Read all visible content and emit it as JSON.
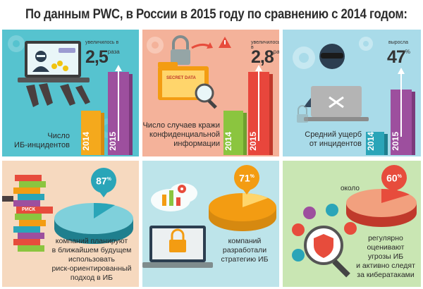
{
  "title": "По данным PWC, в России в 2015 году по сравнению с 2014 годом:",
  "colors": {
    "orange": "#f39c12",
    "purple": "#9b4d9a",
    "teal": "#2aa5b8",
    "salmon": "#f2a07e"
  },
  "panel1": {
    "caption_line1": "Число",
    "caption_line2": "ИБ-инцидентов",
    "note": "увеличилось в",
    "value": "2,5",
    "unit": "раза",
    "year_a": "2014",
    "year_b": "2015",
    "screen_text": "●●● ●●●",
    "icons": [
      "laptop-icon",
      "hacker-icon",
      "dollar-icon",
      "hand-icon"
    ]
  },
  "panel2": {
    "caption_line1": "Число случаев кражи",
    "caption_line2": "конфиденциальной",
    "caption_line3": "информации",
    "note": "увеличилось в",
    "value": "2,8",
    "unit": "раз",
    "year_a": "2014",
    "year_b": "2015",
    "folder_label": "SECRET DATA",
    "icons": [
      "padlock-icon",
      "folder-icon",
      "magnifier-icon",
      "warning-icon"
    ]
  },
  "panel3": {
    "caption_line1": "Средний ущерб",
    "caption_line2": "от инцидентов",
    "note": "выросла",
    "value": "47",
    "unit": "%",
    "year_a": "2014",
    "year_b": "2015",
    "icons": [
      "thief-icon",
      "laptop-icon",
      "crossbones-icon",
      "gear-icon"
    ]
  },
  "panel4": {
    "percent": "87",
    "percent_sign": "%",
    "risk_label": "РИСК",
    "caption_line1": "компаний планируют",
    "caption_line2": "в ближайшем будущем",
    "caption_line3": "использовать",
    "caption_line4": "риск-ориентированный",
    "caption_line5": "подход в ИБ",
    "icons": [
      "jenga-tower-icon",
      "hand-icon"
    ]
  },
  "panel5": {
    "percent": "71",
    "percent_sign": "%",
    "caption_line1": "компаний",
    "caption_line2": "разработали",
    "caption_line3": "стратегию ИБ",
    "icons": [
      "cloud-icon",
      "laptop-icon",
      "padlock-icon",
      "chart-icon"
    ]
  },
  "panel6": {
    "percent": "60",
    "percent_sign": "%",
    "about": "около",
    "caption_line1": "регулярно",
    "caption_line2": "оценивают",
    "caption_line3": "угрозы ИБ",
    "caption_line4": "и активно следят",
    "caption_line5": "за кибератаками",
    "icons": [
      "magnifier-icon",
      "shield-icon",
      "bug-icon",
      "padlock-icon"
    ]
  }
}
